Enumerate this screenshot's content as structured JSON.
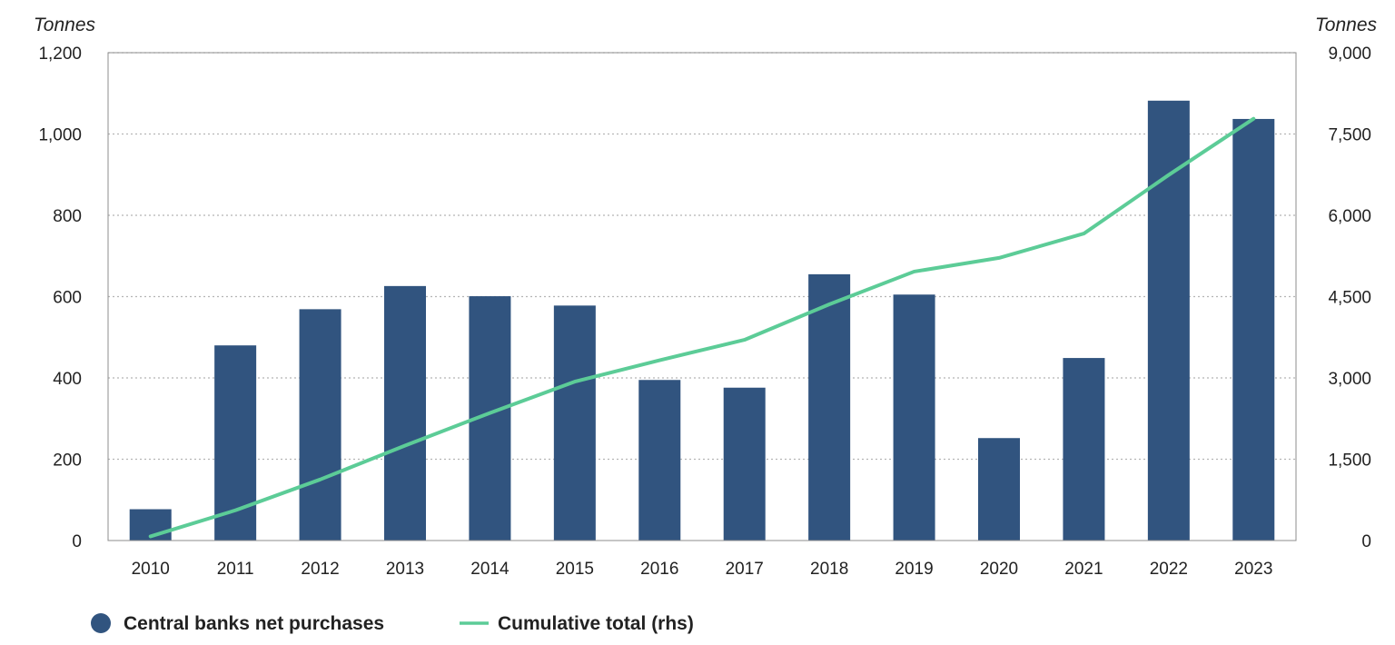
{
  "chart_data": {
    "type": "bar",
    "categories": [
      "2010",
      "2011",
      "2012",
      "2013",
      "2014",
      "2015",
      "2016",
      "2017",
      "2018",
      "2019",
      "2020",
      "2021",
      "2022",
      "2023"
    ],
    "series": [
      {
        "name": "Central banks net purchases",
        "type": "bar",
        "axis": "left",
        "color": "#31547f",
        "values": [
          77,
          480,
          569,
          626,
          601,
          578,
          395,
          376,
          655,
          605,
          252,
          449,
          1082,
          1037
        ]
      },
      {
        "name": "Cumulative total (rhs)",
        "type": "line",
        "axis": "right",
        "color": "#5ccc97",
        "values": [
          77,
          557,
          1126,
          1752,
          2353,
          2931,
          3326,
          3702,
          4357,
          4962,
          5214,
          5663,
          6745,
          7782
        ]
      }
    ],
    "yleft": {
      "unit": "Tonnes",
      "ylim": [
        0,
        1200
      ],
      "ticks": [
        "0",
        "200",
        "400",
        "600",
        "800",
        "1,000",
        "1,200"
      ],
      "tick_values": [
        0,
        200,
        400,
        600,
        800,
        1000,
        1200
      ]
    },
    "yright": {
      "unit": "Tonnes",
      "ylim": [
        0,
        9000
      ],
      "ticks": [
        "0",
        "1,500",
        "3,000",
        "4,500",
        "6,000",
        "7,500",
        "9,000"
      ],
      "tick_values": [
        0,
        1500,
        3000,
        4500,
        6000,
        7500,
        9000
      ]
    },
    "grid": true,
    "legend_position": "bottom-left"
  }
}
